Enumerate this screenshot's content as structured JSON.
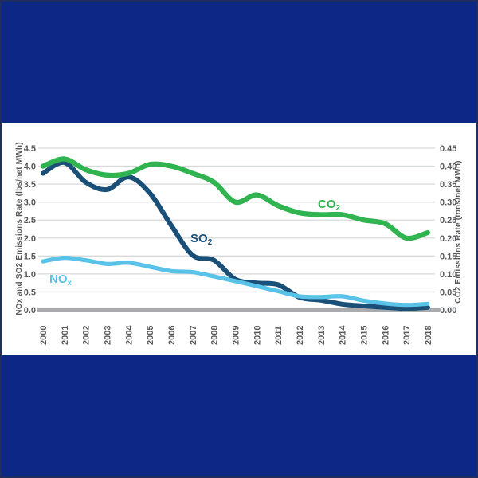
{
  "colors": {
    "background": "#0D2787",
    "panel": "#FFFFFF",
    "grid_line": "#D8D9DA",
    "zero_line": "#A9ABAE",
    "axis_text": "#58595B"
  },
  "chart_data": {
    "type": "line",
    "x": [
      2000,
      2001,
      2002,
      2003,
      2004,
      2005,
      2006,
      2007,
      2008,
      2009,
      2010,
      2011,
      2012,
      2013,
      2014,
      2015,
      2016,
      2017,
      2018
    ],
    "x_tick_labels": [
      "2000",
      "2001",
      "2002",
      "2003",
      "2004",
      "2005",
      "2006",
      "2007",
      "2008",
      "2009",
      "2010",
      "2011",
      "2012",
      "2013",
      "2014",
      "2015",
      "2016",
      "2017",
      "2018"
    ],
    "left_axis": {
      "title": "NOx and SO2 Emissions Rate (lbs/net MWh)",
      "min": 0.0,
      "max": 4.5,
      "step": 0.5,
      "tick_labels": [
        "0.0",
        "0.5",
        "1.0",
        "1.5",
        "2.0",
        "2.5",
        "3.0",
        "3.5",
        "4.0",
        "4.5"
      ]
    },
    "right_axis": {
      "title": "CO2 Emissions Rate (tons/net MWh)",
      "min": 0.0,
      "max": 0.45,
      "step": 0.05,
      "tick_labels": [
        "0.00",
        "0.05",
        "0.10",
        "0.15",
        "0.20",
        "0.25",
        "0.30",
        "0.35",
        "0.40",
        "0.45"
      ]
    },
    "grid": true,
    "legend_position": "inline-labels",
    "series": [
      {
        "name": "SO2",
        "label_main": "SO",
        "label_sub": "2",
        "axis": "left",
        "color": "#1A4F78",
        "values": [
          3.8,
          4.1,
          3.55,
          3.35,
          3.7,
          3.25,
          2.35,
          1.52,
          1.38,
          0.85,
          0.75,
          0.7,
          0.35,
          0.27,
          0.16,
          0.11,
          0.07,
          0.04,
          0.07
        ]
      },
      {
        "name": "NOx",
        "label_main": "NO",
        "label_sub": "x",
        "axis": "left",
        "color": "#59C2E8",
        "values": [
          1.35,
          1.45,
          1.38,
          1.28,
          1.31,
          1.2,
          1.08,
          1.05,
          0.93,
          0.8,
          0.66,
          0.52,
          0.38,
          0.36,
          0.38,
          0.26,
          0.18,
          0.14,
          0.17
        ]
      },
      {
        "name": "CO2",
        "label_main": "CO",
        "label_sub": "2",
        "axis": "right",
        "color": "#2FB450",
        "values": [
          0.4,
          0.42,
          0.39,
          0.375,
          0.38,
          0.405,
          0.4,
          0.38,
          0.355,
          0.3,
          0.32,
          0.29,
          0.27,
          0.265,
          0.265,
          0.25,
          0.24,
          0.2,
          0.215
        ]
      }
    ]
  }
}
